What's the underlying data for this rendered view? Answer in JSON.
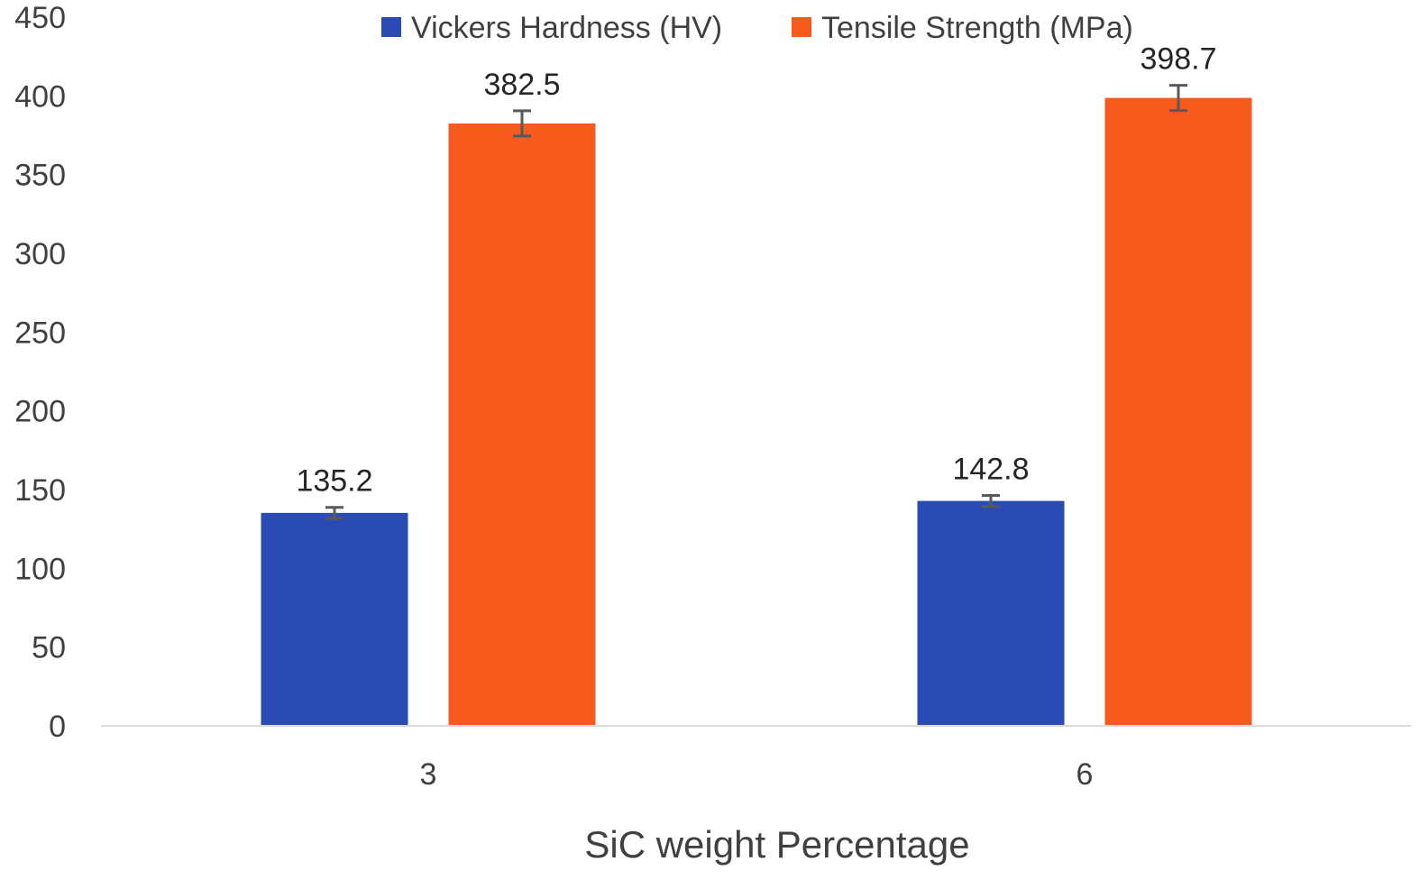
{
  "chart_data": {
    "type": "bar",
    "title": "",
    "xlabel": "SiC weight Percentage",
    "ylabel": "",
    "categories": [
      "3",
      "6"
    ],
    "ylim": [
      0,
      450
    ],
    "yticks": [
      0,
      50,
      100,
      150,
      200,
      250,
      300,
      350,
      400,
      450
    ],
    "grid": false,
    "legend_position": "top-center",
    "error_bars": true,
    "series": [
      {
        "name": "Vickers Hardness (HV)",
        "color": "#2a4bb3",
        "values": [
          135.2,
          142.8
        ],
        "value_labels": [
          "135.2",
          "142.8"
        ],
        "errors": [
          3.5,
          3.5
        ]
      },
      {
        "name": "Tensile Strength (MPa)",
        "color": "#f75a1d",
        "values": [
          382.5,
          398.7
        ],
        "value_labels": [
          "382.5",
          "398.7"
        ],
        "errors": [
          8,
          8
        ]
      }
    ]
  }
}
